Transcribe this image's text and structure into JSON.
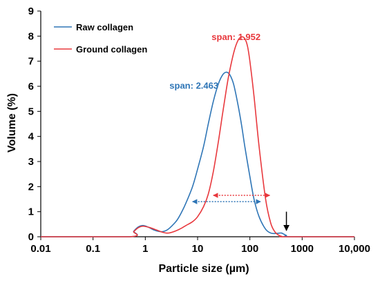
{
  "chart_data": {
    "type": "line",
    "xscale": "log",
    "xlabel": "Particle size (µm)",
    "ylabel": "Volume (%)",
    "xlim": [
      0.01,
      10000
    ],
    "ylim": [
      0,
      9
    ],
    "x_tick_labels": [
      "0.01",
      "0.1",
      "1",
      "10",
      "100",
      "1000",
      "10,000"
    ],
    "x_tick_values": [
      0.01,
      0.1,
      1,
      10,
      100,
      1000,
      10000
    ],
    "y_tick_values": [
      0,
      1,
      2,
      3,
      4,
      5,
      6,
      7,
      8,
      9
    ],
    "grid": false,
    "legend_position": "top-left",
    "series": [
      {
        "name": "Raw collagen",
        "color": "#2E75B6",
        "x": [
          0.01,
          0.5,
          0.6,
          0.7,
          0.8,
          0.9,
          1.0,
          1.2,
          1.5,
          2,
          2.5,
          3,
          4,
          5,
          6,
          8,
          10,
          13,
          16,
          20,
          25,
          30,
          35,
          40,
          45,
          50,
          60,
          70,
          80,
          100,
          120,
          150,
          200,
          250,
          300,
          350,
          400,
          450,
          500,
          600,
          10000
        ],
        "y": [
          0,
          0,
          0.22,
          0.36,
          0.43,
          0.45,
          0.43,
          0.36,
          0.26,
          0.2,
          0.25,
          0.37,
          0.65,
          1.0,
          1.35,
          2.0,
          2.7,
          3.6,
          4.5,
          5.4,
          6.1,
          6.45,
          6.56,
          6.5,
          6.3,
          6.0,
          5.2,
          4.4,
          3.6,
          2.4,
          1.5,
          0.8,
          0.3,
          0.15,
          0.13,
          0.14,
          0.15,
          0.1,
          0.05,
          0,
          0
        ]
      },
      {
        "name": "Ground collagen",
        "color": "#E8383D",
        "x": [
          0.01,
          0.5,
          0.6,
          0.7,
          0.8,
          0.9,
          1.0,
          1.2,
          1.5,
          2,
          2.5,
          3,
          4,
          5,
          6,
          8,
          10,
          13,
          16,
          20,
          25,
          30,
          35,
          40,
          50,
          60,
          70,
          80,
          90,
          100,
          120,
          150,
          200,
          250,
          300,
          350,
          400,
          500,
          10000
        ],
        "y": [
          0,
          0,
          0.2,
          0.33,
          0.4,
          0.42,
          0.41,
          0.37,
          0.3,
          0.2,
          0.15,
          0.16,
          0.25,
          0.35,
          0.45,
          0.6,
          0.8,
          1.2,
          1.7,
          2.6,
          3.8,
          4.9,
          5.8,
          6.5,
          7.4,
          7.85,
          7.97,
          7.9,
          7.6,
          7.0,
          5.6,
          3.6,
          1.5,
          0.55,
          0.2,
          0.07,
          0.02,
          0,
          0
        ]
      }
    ],
    "annotations": [
      {
        "text": "span: 2.463",
        "color": "#2E75B6",
        "anchor_x": 25,
        "anchor_y": 5.9
      },
      {
        "text": "span: 1.952",
        "color": "#E8383D",
        "anchor_x": 160,
        "anchor_y": 7.85
      }
    ],
    "span_arrows": [
      {
        "color": "#2E75B6",
        "x_start": 8,
        "x_end": 160,
        "y": 1.4
      },
      {
        "color": "#E8383D",
        "x_start": 20,
        "x_end": 240,
        "y": 1.65
      }
    ],
    "marker_arrow": {
      "color": "#000000",
      "x": 500,
      "y_start": 1.0,
      "y_end": 0.25
    }
  }
}
